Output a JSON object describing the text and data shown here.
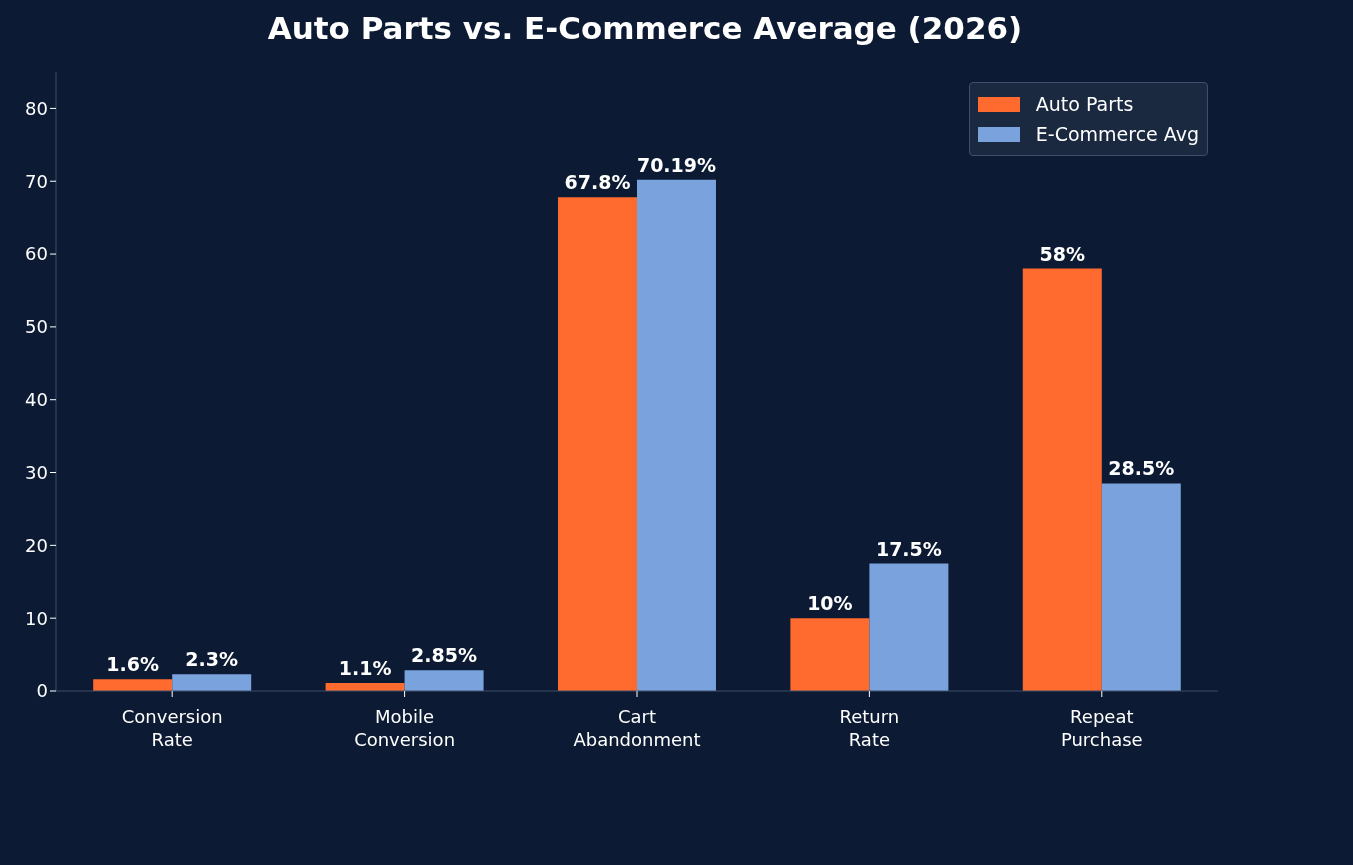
{
  "chart_data": {
    "type": "bar",
    "title": "Auto Parts vs. E-Commerce Average (2026)",
    "categories": [
      "Conversion Rate",
      "Mobile Conversion",
      "Cart Abandonment",
      "Return Rate",
      "Repeat Purchase"
    ],
    "series": [
      {
        "name": "Auto Parts",
        "color": "#ff6b2e",
        "values": [
          1.6,
          1.1,
          67.8,
          10,
          58
        ],
        "value_labels": [
          "1.6%",
          "1.1%",
          "67.8%",
          "10%",
          "58%"
        ]
      },
      {
        "name": "E-Commerce Avg",
        "color": "#7aa2dc",
        "values": [
          2.3,
          2.85,
          70.19,
          17.5,
          28.5
        ],
        "value_labels": [
          "2.3%",
          "2.85%",
          "70.19%",
          "17.5%",
          "28.5%"
        ]
      }
    ],
    "ylim": [
      0,
      85
    ],
    "yticks": [
      0,
      10,
      20,
      30,
      40,
      50,
      60,
      70,
      80
    ],
    "grid": false,
    "legend": "top right"
  }
}
